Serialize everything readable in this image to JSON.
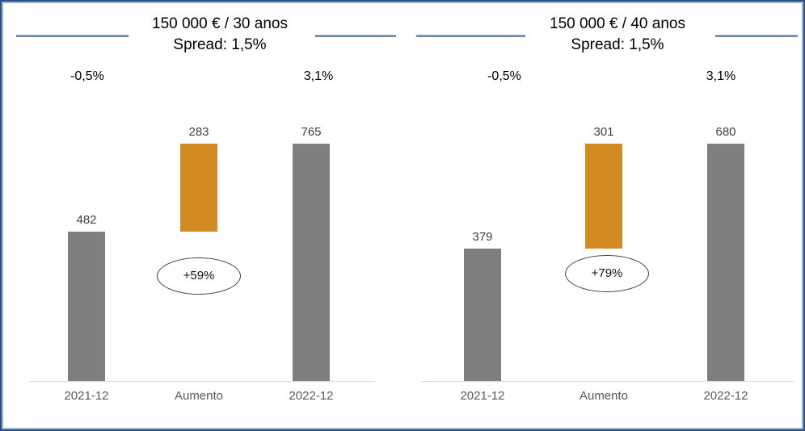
{
  "colors": {
    "bar_gray": "#7F7F7F",
    "bar_orange": "#D28B22",
    "axis_line": "#D9D9D9",
    "frame_border": "#2A5080",
    "frame_inner_border": "#9FB4CE",
    "title_rule": "#6786AC",
    "value_label": "#404040",
    "category_label": "#595959",
    "badge_border": "#404040"
  },
  "chart_data": [
    {
      "type": "bar",
      "title": "150 000 € / 30 anos",
      "subtitle": "Spread: 1,5%",
      "rate_labels": [
        "-0,5%",
        "3,1%"
      ],
      "categories": [
        "2021-12",
        "Aumento",
        "2022-12"
      ],
      "bars": [
        {
          "category": "2021-12",
          "value": 482,
          "style": "solid",
          "base": 0,
          "color_key": "gray"
        },
        {
          "category": "Aumento",
          "value": 283,
          "style": "floating",
          "base": 482,
          "color_key": "orange"
        },
        {
          "category": "2022-12",
          "value": 765,
          "style": "solid",
          "base": 0,
          "color_key": "gray"
        }
      ],
      "badge": "+59%",
      "xlabel": "",
      "ylabel": "",
      "ylim": [
        0,
        765
      ],
      "grid": false,
      "legend": "none"
    },
    {
      "type": "bar",
      "title": "150 000 € / 40 anos",
      "subtitle": "Spread: 1,5%",
      "rate_labels": [
        "-0,5%",
        "3,1%"
      ],
      "categories": [
        "2021-12",
        "Aumento",
        "2022-12"
      ],
      "bars": [
        {
          "category": "2021-12",
          "value": 379,
          "style": "solid",
          "base": 0,
          "color_key": "gray"
        },
        {
          "category": "Aumento",
          "value": 301,
          "style": "floating",
          "base": 379,
          "color_key": "orange"
        },
        {
          "category": "2022-12",
          "value": 680,
          "style": "solid",
          "base": 0,
          "color_key": "gray"
        }
      ],
      "badge": "+79%",
      "xlabel": "",
      "ylabel": "",
      "ylim": [
        0,
        680
      ],
      "grid": false,
      "legend": "none"
    }
  ]
}
